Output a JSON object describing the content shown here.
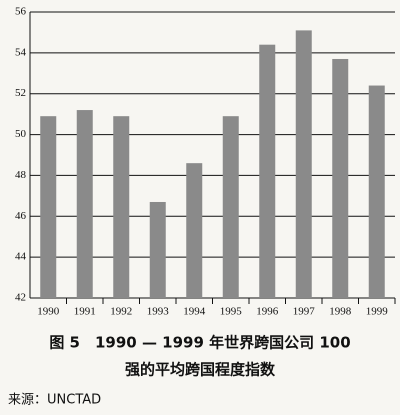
{
  "chart_data": {
    "type": "bar",
    "title_lines": [
      "图 5　1990 — 1999 年世界跨国公司 100",
      "强的平均跨国程度指数"
    ],
    "source": "来源：UNCTAD",
    "categories": [
      "1990",
      "1991",
      "1992",
      "1993",
      "1994",
      "1995",
      "1996",
      "1997",
      "1998",
      "1999"
    ],
    "values": [
      50.9,
      51.2,
      50.9,
      46.7,
      48.6,
      50.9,
      54.4,
      55.1,
      53.7,
      52.4
    ],
    "color": "#8a8a8a",
    "ylim": [
      42,
      56
    ],
    "yticks": [
      42,
      44,
      46,
      48,
      50,
      52,
      54,
      56
    ],
    "grid": true
  }
}
